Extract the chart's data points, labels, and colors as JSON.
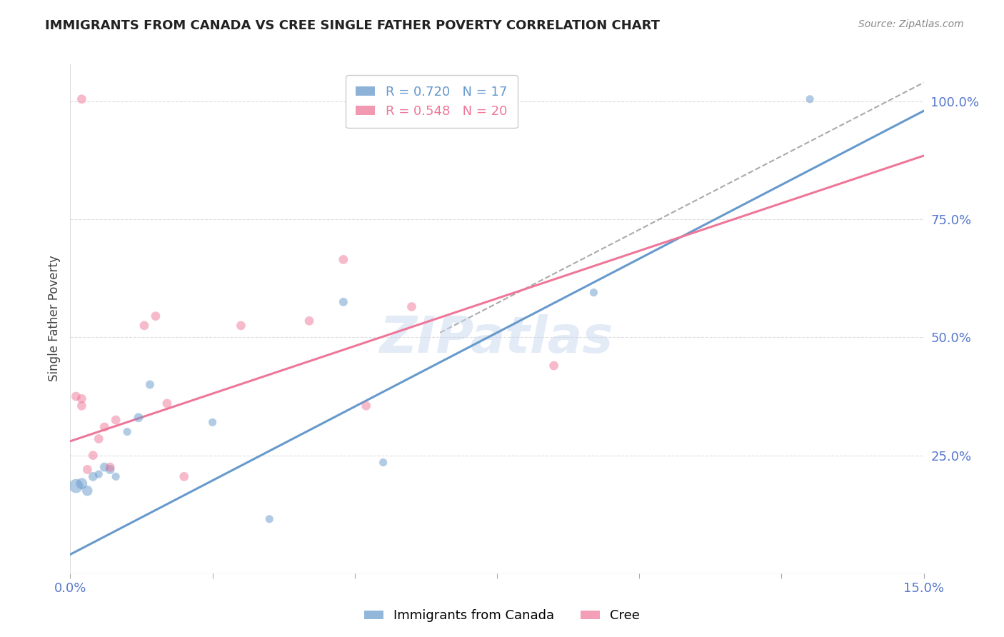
{
  "title": "IMMIGRANTS FROM CANADA VS CREE SINGLE FATHER POVERTY CORRELATION CHART",
  "source": "Source: ZipAtlas.com",
  "ylabel": "Single Father Poverty",
  "xmin": 0.0,
  "xmax": 0.15,
  "ymin": 0.0,
  "ymax": 1.08,
  "blue_series": {
    "label": "Immigrants from Canada",
    "R": 0.72,
    "N": 17,
    "color": "#6699cc",
    "scatter_x": [
      0.001,
      0.002,
      0.003,
      0.004,
      0.005,
      0.006,
      0.007,
      0.008,
      0.01,
      0.012,
      0.014,
      0.025,
      0.035,
      0.048,
      0.055,
      0.092,
      0.13
    ],
    "scatter_y": [
      0.185,
      0.19,
      0.175,
      0.205,
      0.21,
      0.225,
      0.22,
      0.205,
      0.3,
      0.33,
      0.4,
      0.32,
      0.115,
      0.575,
      0.235,
      0.595,
      1.005
    ],
    "scatter_sizes": [
      200,
      130,
      110,
      85,
      65,
      85,
      85,
      65,
      65,
      85,
      75,
      65,
      65,
      75,
      65,
      65,
      65
    ],
    "trend_x": [
      0.0,
      0.15
    ],
    "trend_y": [
      0.04,
      0.98
    ]
  },
  "pink_series": {
    "label": "Cree",
    "R": 0.548,
    "N": 20,
    "color": "#ee7799",
    "scatter_x": [
      0.001,
      0.002,
      0.002,
      0.003,
      0.004,
      0.005,
      0.006,
      0.007,
      0.008,
      0.013,
      0.015,
      0.017,
      0.02,
      0.03,
      0.042,
      0.048,
      0.052,
      0.06,
      0.085,
      0.002
    ],
    "scatter_y": [
      0.375,
      0.37,
      0.355,
      0.22,
      0.25,
      0.285,
      0.31,
      0.225,
      0.325,
      0.525,
      0.545,
      0.36,
      0.205,
      0.525,
      0.535,
      0.665,
      0.355,
      0.565,
      0.44,
      1.005
    ],
    "scatter_sizes": [
      85,
      85,
      85,
      85,
      85,
      85,
      85,
      85,
      85,
      85,
      85,
      85,
      85,
      85,
      85,
      85,
      85,
      85,
      85,
      85
    ],
    "trend_x": [
      0.0,
      0.15
    ],
    "trend_y": [
      0.28,
      0.885
    ]
  },
  "dash_line": {
    "x": [
      0.065,
      0.15
    ],
    "y": [
      0.51,
      1.04
    ],
    "color": "#aaaaaa",
    "linewidth": 1.5
  },
  "watermark": "ZIPatlas",
  "background_color": "#ffffff",
  "grid_color": "#dddddd",
  "title_color": "#222222",
  "tick_color": "#5577cc"
}
